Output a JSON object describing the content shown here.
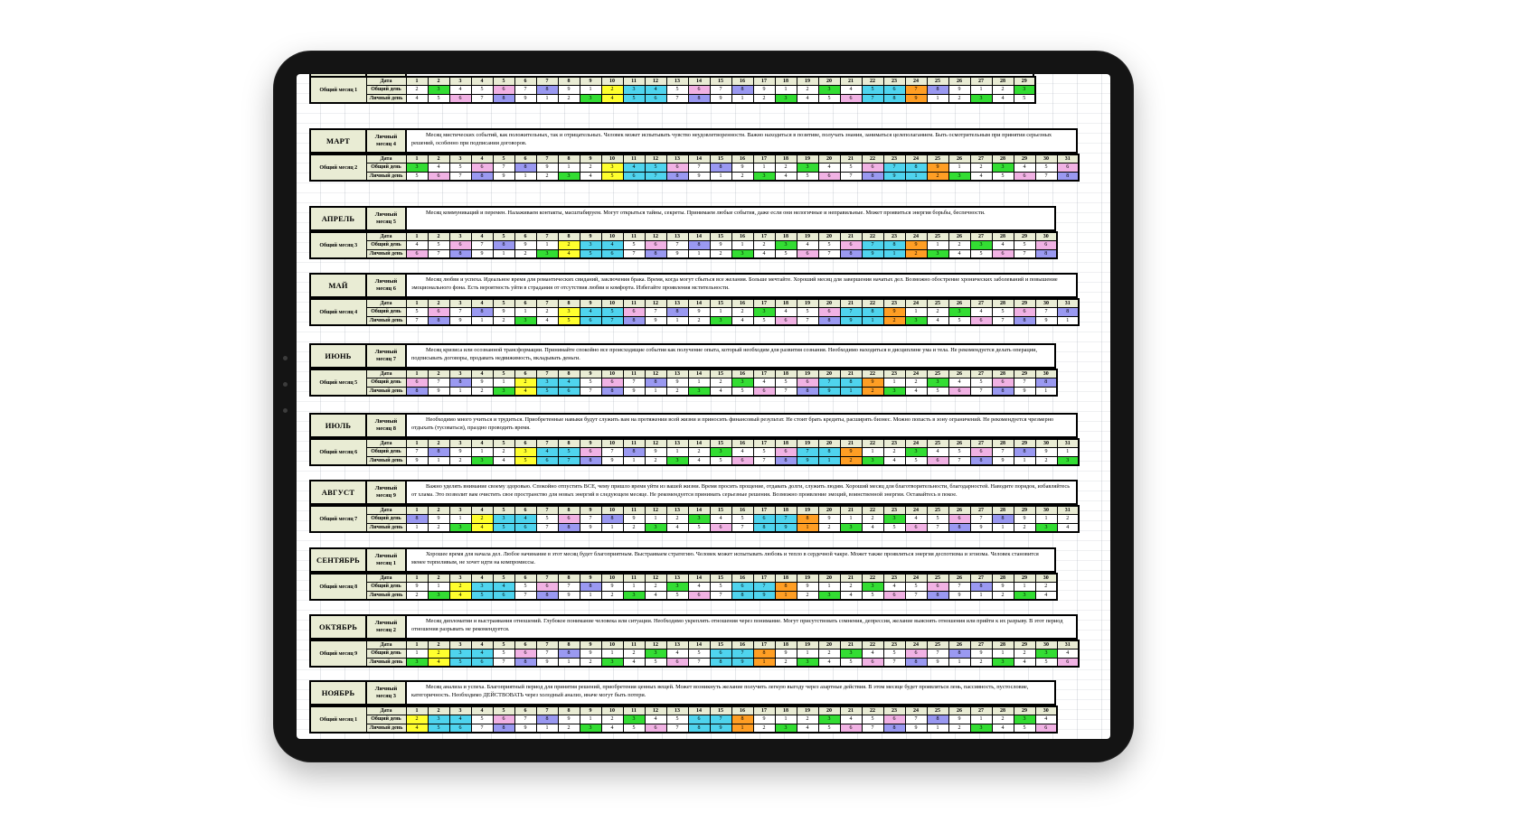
{
  "device": {
    "type": "tablet-frame",
    "camera_dots": 3
  },
  "sheet": {
    "row_labels": {
      "date": "Дата",
      "general_day": "Общий день",
      "personal_day": "Личный день"
    },
    "palette": {
      "w": "#ffffff",
      "g": "#33dd33",
      "p": "#f1b2e4",
      "u": "#9a99f1",
      "y": "#ffff2e",
      "c": "#4fd4ee",
      "o": "#ff9e24",
      "head": "#e9ecd4",
      "border": "#000000"
    },
    "months": [
      {
        "name": "",
        "personal_month": "",
        "general_month": "Общий месяц 1",
        "days": 29,
        "partial": true,
        "description": "",
        "general_values": "23456789123456789123456789123",
        "general_colors": "wgwwpwuwwyccwpwuwwwgwccouwwwg",
        "personal_values": "45678912345678912345678912345",
        "personal_colors": "wwpwuwwwgyccwuwwwgwwpccowwgww"
      },
      {
        "name": "МАРТ",
        "personal_month": "Личный месяц 4",
        "general_month": "Общий месяц 2",
        "days": 31,
        "partial": false,
        "description": "Месяц мистических событий, как положительных, так и отрицательных. Человек может испытывать чувство неудовлетворенности. Важно  находиться в позитиве, получать знания, заниматься целеполаганием. Быть осмотрительным при  принятии серьезных решений, особенно  при подписании договоров.",
        "general_values": "3456789123456789123456789123456",
        "general_colors": "gwwpwuwwwyccpwuwwwgwwpccowwgwwp",
        "personal_values": "5678912345678912345678912345678",
        "personal_colors": "wpwuwwwgwyccuwwwgwwpwuccogwwpwu"
      },
      {
        "name": "АПРЕЛЬ",
        "personal_month": "Личный месяц 5",
        "general_month": "Общий месяц 3",
        "days": 30,
        "partial": false,
        "description": "Месяц коммуникаций и перемен. Налаживаем контакты, масштабируем. Могут открыться тайны, секреты. Принимаем любые события, даже если они нелогичные и неправильные. Может проявиться энергия борьбы, беспечности.",
        "general_values": "456789123456789123456789123456",
        "general_colors": "wwpwuwwyccwpwuwwwgwwpccowwgwwp",
        "personal_values": "678912345678912345678912345678",
        "personal_colors": "pwuwwwgyccwuwwwgwwpwuccogwwpwu"
      },
      {
        "name": "МАЙ",
        "personal_month": "Личный месяц 6",
        "general_month": "Общий месяц 4",
        "days": 31,
        "partial": false,
        "description": "Месяц любви и успеха.  Идеальное время для романтических свиданий, заключения брака. Время, когда могут сбыться все желания. Больше мечтайте.  Хороший месяц для завершения начатых дел. Возможно обострение хронических заболеваний и повышение эмоционального фона. Есть вероятность уйти в  страдания от отсутствия любви и комфорта. Избегайте проявления мстительности.",
        "general_values": "5678912345678912345678912345678",
        "general_colors": "wpwuwwwyccpwuwwwgwwpccowwgwwpwu",
        "personal_values": "7891234567891234567891234567891",
        "personal_colors": "wuwwwgwyccuwwwgwwpwuccogwwpwuww"
      },
      {
        "name": "ИЮНЬ",
        "personal_month": "Личный месяц 7",
        "general_month": "Общий месяц 5",
        "days": 30,
        "partial": false,
        "description": "Месяц кризиса или осознанной трансформации. Принимайте спокойно все  происходящие события как получение опыта, который необходим для развития  сознания.  Необходимо находиться в дисциплине ума и тела. Не рекомендуется делать операции,  подписывать договоры, продавать недвижимость, вкладывать деньги.",
        "general_values": "678912345678912345678912345678",
        "general_colors": "pwuwwyccwpwuwwwgwwpccowwgwwpwu",
        "personal_values": "891234567891234567891234567891",
        "personal_colors": "uwwwgyccwuwwwgwwpwuccogwwpwuww"
      },
      {
        "name": "ИЮЛЬ",
        "personal_month": "Личный месяц 8",
        "general_month": "Общий месяц 6",
        "days": 31,
        "partial": false,
        "description": "Необходимо много учиться и трудиться.  Приобретенные навыки будут служить вам на протяжении всей жизни  и приносить финансовый результат. Не стоит брать кредиты, расширять бизнес.  Можно попасть в зону ограничений. Не рекомендуется чрезмерно отдыхать (тусоваться), праздно проводить время.",
        "general_values": "7891234567891234567891234567891",
        "general_colors": "wuwwwyccpwuwwwgwwpccowwgwwpwuww",
        "personal_values": "9123456789123456789123456789123",
        "personal_colors": "wwwgwyccuwwwgwwpwuccogwwpwuwwwg"
      },
      {
        "name": "АВГУСТ",
        "personal_month": "Личный месяц 9",
        "general_month": "Общий месяц 7",
        "days": 31,
        "partial": false,
        "description": "Важно уделять внимание своему здоровью. Спокойно отпустить ВСЕ,  чему пришло время уйти из вашей жизни. Время просить прощение, отдавать долги,  служить людям.  Хороший месяц  для благотворительности, благодарностей. Наводите порядок, избавляйтесь от хлама. Это позволит вам очистить свое пространство для новых энергий в следующем месяце. Не рекомендуется принимать серьезные решения. Возможно проявление эмоций, воинственной энергии.  Оставайтесь в покое.",
        "general_values": "8912345678912345678912345678912",
        "general_colors": "uwwyccwpwuwwwgwwccowwwgwwpwuwww",
        "personal_values": "1234567891234567891234567891234",
        "personal_colors": "wwgyccwuwwwgwwpwccowgwwpwuwwwgw"
      },
      {
        "name": "СЕНТЯБРЬ",
        "personal_month": "Личный месяц 1",
        "general_month": "Общий месяц 8",
        "days": 30,
        "partial": false,
        "description": "Хорошее время для начала дел. Любое начинание в этот месяц будет благоприятным. Выстраиваем стратегию. Человек может испытывать  любовь и тепло в сердечной чакре. Может также проявляться энергия деспотизма и эгоизма. Человек становится менее терпеливым, не хочет идти на компромиссы.",
        "general_values": "912345678912345678912345678912",
        "general_colors": "wwyccwpwuwwwgwwccowwwgwwpwuwww",
        "personal_values": "234567891234567891234567891234",
        "personal_colors": "wgyccwuwwwgwwpwccowgwwpwuwwwgw"
      },
      {
        "name": "ОКТЯБРЬ",
        "personal_month": "Личный месяц 2",
        "general_month": "Общий месяц 9",
        "days": 31,
        "partial": false,
        "description": "Месяц дипломатии и выстраивания отношений. Глубокое понимание человека или ситуации. Необходимо укреплять отношения через понимание. Могут присутствовать сомнения, депрессия, желание выяснять отношения или прийти к их разрыву. В этот период отношения разрывать не рекомендуется.",
        "general_values": "1234567891234567891234567891234",
        "general_colors": "wyccwpwuwwwgwwccowwwgwwpwuwwwgw",
        "personal_values": "3456789123456789123456789123456",
        "personal_colors": "gyccwuwwwgwwpwccowgwwpwuwwwgwwp"
      },
      {
        "name": "НОЯБРЬ",
        "personal_month": "Личный месяц 3",
        "general_month": "Общий месяц 1",
        "days": 30,
        "partial": false,
        "description": "Месяц анализа и успеха. Благоприятный период для принятия решений, приобретения ценных вещей. Может возникнуть желание получить легкую выгоду через азартные действия. В этом месяце будет проявляться лень, пассивность, пустословие, категоричность. Необходимо ДЕЙСТВОВАТЬ через холодный анализ, иначе могут быть потери.",
        "general_values": "234567891234567891234567891234",
        "general_colors": "yccwpwuwwwgwwccowwwgwwpwuwwwgw",
        "personal_values": "456789123456789123456789123456",
        "personal_colors": "yccwuwwwgwwpwccowgwwpwuwwwgwwp"
      }
    ]
  }
}
